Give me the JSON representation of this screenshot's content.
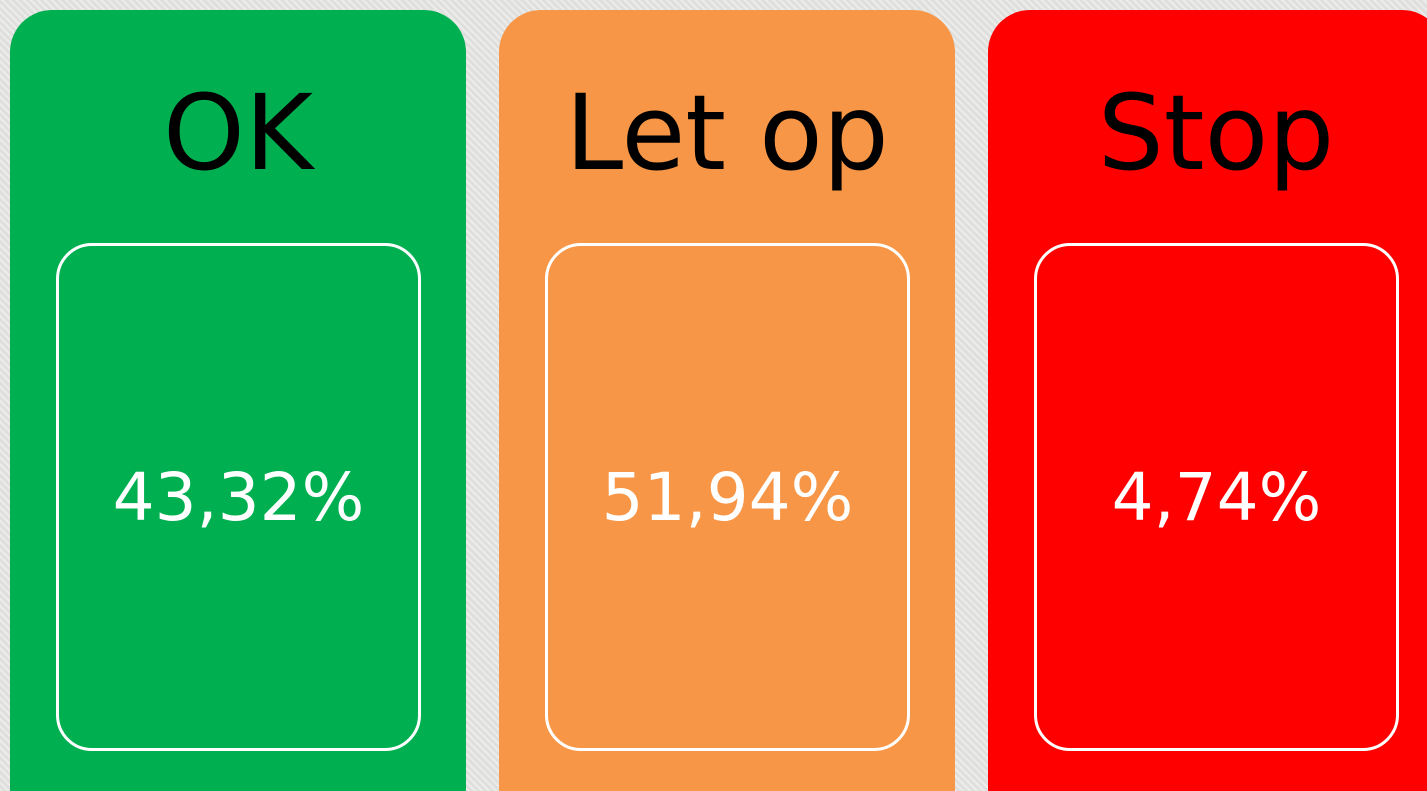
{
  "cards": [
    {
      "title": "OK",
      "value": "43,32%"
    },
    {
      "title": "Let op",
      "value": "51,94%"
    },
    {
      "title": "Stop",
      "value": "4,74%"
    }
  ]
}
